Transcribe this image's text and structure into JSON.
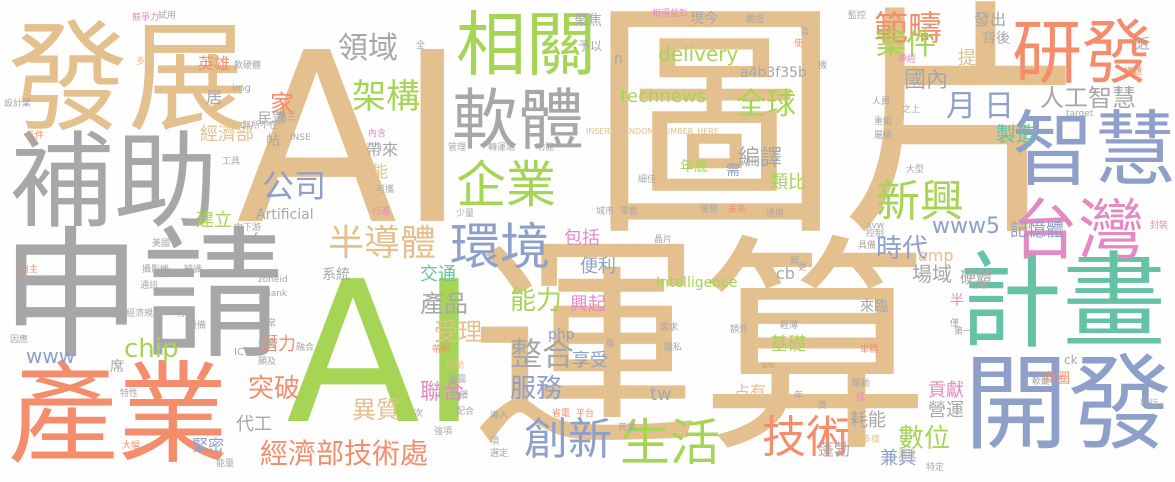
{
  "palette": {
    "tan": "#e3c08d",
    "gray": "#a7a7a7",
    "orange": "#f38d6c",
    "green": "#a6d555",
    "blue": "#8ea0c9",
    "teal": "#66c2a5",
    "pink": "#e48ac2"
  },
  "words": [
    {
      "text": "圖片",
      "color": "tan"
    },
    {
      "text": "AI",
      "color": "tan"
    },
    {
      "text": "AI",
      "color": "green"
    },
    {
      "text": "運算",
      "color": "tan"
    },
    {
      "text": "發展",
      "color": "tan"
    },
    {
      "text": "補助",
      "color": "gray"
    },
    {
      "text": "申請",
      "color": "gray"
    },
    {
      "text": "產業",
      "color": "orange"
    },
    {
      "text": "開發",
      "color": "blue"
    },
    {
      "text": "計畫",
      "color": "teal"
    },
    {
      "text": "智慧",
      "color": "blue"
    },
    {
      "text": "台灣",
      "color": "pink"
    },
    {
      "text": "研發",
      "color": "orange"
    },
    {
      "text": "相關",
      "color": "green"
    },
    {
      "text": "軟體",
      "color": "gray"
    },
    {
      "text": "企業",
      "color": "green"
    },
    {
      "text": "環境",
      "color": "blue"
    },
    {
      "text": "創新",
      "color": "blue"
    },
    {
      "text": "生活",
      "color": "green"
    },
    {
      "text": "技術",
      "color": "orange"
    },
    {
      "text": "新興",
      "color": "green"
    },
    {
      "text": "半導體",
      "color": "tan"
    },
    {
      "text": "經濟部技術處",
      "color": "orange"
    },
    {
      "text": "架構",
      "color": "green"
    },
    {
      "text": "領域",
      "color": "gray"
    },
    {
      "text": "範疇",
      "color": "orange"
    },
    {
      "text": "案件",
      "color": "green"
    },
    {
      "text": "人工智慧",
      "color": "gray"
    },
    {
      "text": "全球",
      "color": "green"
    },
    {
      "text": "月",
      "color": "blue"
    },
    {
      "text": "日",
      "color": "blue"
    },
    {
      "text": "國內",
      "color": "gray"
    },
    {
      "text": "公司",
      "color": "blue"
    },
    {
      "text": "整合",
      "color": "gray"
    },
    {
      "text": "服務",
      "color": "blue"
    },
    {
      "text": "能力",
      "color": "green"
    },
    {
      "text": "時代",
      "color": "blue"
    },
    {
      "text": "產品",
      "color": "gray"
    },
    {
      "text": "受理",
      "color": "tan"
    },
    {
      "text": "突破",
      "color": "orange"
    },
    {
      "text": "異質",
      "color": "tan"
    },
    {
      "text": "數位",
      "color": "green"
    },
    {
      "text": "www5",
      "color": "blue"
    },
    {
      "text": "家",
      "color": "orange"
    },
    {
      "text": "chip",
      "color": "green"
    },
    {
      "text": "www",
      "color": "blue"
    },
    {
      "text": "delivery",
      "color": "green"
    },
    {
      "text": "technews",
      "color": "green"
    },
    {
      "text": "記憶體",
      "color": "blue"
    },
    {
      "text": "製造",
      "color": "teal"
    },
    {
      "text": "編譯",
      "color": "gray"
    },
    {
      "text": "類比",
      "color": "green"
    },
    {
      "text": "場域",
      "color": "gray"
    },
    {
      "text": "硬體",
      "color": "gray"
    },
    {
      "text": "包括",
      "color": "pink"
    },
    {
      "text": "交通",
      "color": "teal"
    },
    {
      "text": "便利",
      "color": "blue"
    },
    {
      "text": "興起",
      "color": "pink"
    },
    {
      "text": "享受",
      "color": "blue"
    },
    {
      "text": "聯合",
      "color": "pink"
    },
    {
      "text": "基礎",
      "color": "green"
    },
    {
      "text": "耗能",
      "color": "gray"
    },
    {
      "text": "營運",
      "color": "gray"
    },
    {
      "text": "兼具",
      "color": "blue"
    },
    {
      "text": "蓬勃",
      "color": "gray"
    },
    {
      "text": "貢獻",
      "color": "pink"
    },
    {
      "text": "代工",
      "color": "gray"
    },
    {
      "text": "緊密",
      "color": "blue"
    },
    {
      "text": "潛力",
      "color": "orange"
    },
    {
      "text": "提出",
      "color": "tan"
    },
    {
      "text": "發出",
      "color": "gray"
    },
    {
      "text": "背後",
      "color": "gray"
    },
    {
      "text": "經濟部",
      "color": "tan"
    },
    {
      "text": "效能",
      "color": "tan"
    },
    {
      "text": "帶來",
      "color": "gray"
    },
    {
      "text": "建立",
      "color": "green"
    },
    {
      "text": "居",
      "color": "gray"
    },
    {
      "text": "英雄",
      "color": "orange"
    },
    {
      "text": "a4b3f35b",
      "color": "gray"
    },
    {
      "text": "Intelligence",
      "color": "green"
    },
    {
      "text": "Artificial",
      "color": "gray"
    },
    {
      "text": "php",
      "color": "blue"
    },
    {
      "text": "tw",
      "color": "gray"
    },
    {
      "text": "cb",
      "color": "gray"
    },
    {
      "text": "amp",
      "color": "tan"
    },
    {
      "text": "系統",
      "color": "gray"
    },
    {
      "text": "席",
      "color": "gray"
    },
    {
      "text": "占有",
      "color": "tan"
    },
    {
      "text": "年底",
      "color": "green"
    },
    {
      "text": "需",
      "color": "blue"
    },
    {
      "text": "來臨",
      "color": "gray"
    },
    {
      "text": "民眾",
      "color": "gray"
    },
    {
      "text": "帖",
      "color": "gray"
    },
    {
      "text": "ck",
      "color": "gray"
    },
    {
      "text": "聚焦",
      "color": "gray"
    },
    {
      "text": "現今",
      "color": "gray"
    },
    {
      "text": "近",
      "color": "gray"
    },
    {
      "text": "予以",
      "color": "gray"
    },
    {
      "text": "n",
      "color": "gray"
    },
    {
      "text": "href",
      "color": "gray"
    },
    {
      "text": "INSERT_RANDOM_NUMBER_HERE",
      "color": "tan"
    },
    {
      "text": "競爭力",
      "color": "pink"
    },
    {
      "text": "多元",
      "color": "tan"
    },
    {
      "text": "設計業",
      "color": "gray"
    },
    {
      "text": "元件",
      "color": "orange"
    },
    {
      "text": "img",
      "color": "gray"
    },
    {
      "text": "軟硬體",
      "color": "gray"
    },
    {
      "text": "第三",
      "color": "gray"
    },
    {
      "text": "無所不在",
      "color": "gray"
    },
    {
      "text": "INSE",
      "color": "gray"
    },
    {
      "text": "內含",
      "color": "pink"
    },
    {
      "text": "工具",
      "color": "gray"
    },
    {
      "text": "管理",
      "color": "gray"
    },
    {
      "text": "轉運站",
      "color": "gray"
    },
    {
      "text": "功能",
      "color": "gray"
    },
    {
      "text": "可攜",
      "color": "gray"
    },
    {
      "text": "行進",
      "color": "pink"
    },
    {
      "text": "中下游",
      "color": "gray"
    },
    {
      "text": "少量",
      "color": "gray"
    },
    {
      "text": "城市",
      "color": "gray"
    },
    {
      "text": "零售",
      "color": "gray"
    },
    {
      "text": "優勢",
      "color": "gray"
    },
    {
      "text": "未來",
      "color": "orange"
    },
    {
      "text": "通用",
      "color": "gray"
    },
    {
      "text": "美國",
      "color": "gray"
    },
    {
      "text": "自主",
      "color": "orange"
    },
    {
      "text": "攝影機",
      "color": "gray"
    },
    {
      "text": "辨識",
      "color": "gray"
    },
    {
      "text": "通訊",
      "color": "gray"
    },
    {
      "text": "_blank",
      "color": "gray"
    },
    {
      "text": "zoneid",
      "color": "gray"
    },
    {
      "text": "經濟規",
      "color": "gray"
    },
    {
      "text": "材料",
      "color": "gray"
    },
    {
      "text": "設備",
      "color": "gray"
    },
    {
      "text": "日常",
      "color": "gray"
    },
    {
      "text": "因應",
      "color": "gray"
    },
    {
      "text": "特性",
      "color": "gray"
    },
    {
      "text": "大幅",
      "color": "orange"
    },
    {
      "text": "能量",
      "color": "gray"
    },
    {
      "text": "檢測",
      "color": "gray"
    },
    {
      "text": "融合",
      "color": "gray"
    },
    {
      "text": "顯及",
      "color": "gray"
    },
    {
      "text": "帶動",
      "color": "orange"
    },
    {
      "text": "啟動",
      "color": "tan"
    },
    {
      "text": "晶圓",
      "color": "gray"
    },
    {
      "text": "回饋",
      "color": "gray"
    },
    {
      "text": "配合",
      "color": "gray"
    },
    {
      "text": "導入",
      "color": "gray"
    },
    {
      "text": "省電",
      "color": "orange"
    },
    {
      "text": "平台",
      "color": "orange"
    },
    {
      "text": "強項",
      "color": "gray"
    },
    {
      "text": "選定",
      "color": "gray"
    },
    {
      "text": "項",
      "color": "gray"
    },
    {
      "text": "a",
      "color": "gray"
    },
    {
      "text": "IC",
      "color": "gray"
    },
    {
      "text": "次",
      "color": "gray"
    },
    {
      "text": "商業",
      "color": "gray"
    },
    {
      "text": "需求",
      "color": "gray"
    },
    {
      "text": "隱私",
      "color": "gray"
    },
    {
      "text": "車輛",
      "color": "orange"
    },
    {
      "text": "特定",
      "color": "gray"
    },
    {
      "text": "多樣",
      "color": "tan"
    },
    {
      "text": "測試",
      "color": "gray"
    },
    {
      "text": "驅動",
      "color": "gray"
    },
    {
      "text": "低",
      "color": "pink"
    },
    {
      "text": "商圈",
      "color": "orange"
    },
    {
      "text": "軟硬",
      "color": "gray"
    },
    {
      "text": "執行",
      "color": "gray"
    },
    {
      "text": "第一",
      "color": "gray"
    },
    {
      "text": "輕薄",
      "color": "gray"
    },
    {
      "text": "額外",
      "color": "gray"
    },
    {
      "text": "半",
      "color": "pink"
    },
    {
      "text": "可靠",
      "color": "gray"
    },
    {
      "text": "僅",
      "color": "gray"
    },
    {
      "text": "封裝",
      "color": "pink"
    },
    {
      "text": "avw",
      "color": "gray"
    },
    {
      "text": "src",
      "color": "gray"
    },
    {
      "text": "更",
      "color": "gray"
    },
    {
      "text": "類",
      "color": "gray"
    },
    {
      "text": "具備",
      "color": "gray"
    },
    {
      "text": "晶片",
      "color": "gray"
    },
    {
      "text": "細佳",
      "color": "gray"
    },
    {
      "text": "控制",
      "color": "gray"
    },
    {
      "text": "大型",
      "color": "gray"
    },
    {
      "text": "重組",
      "color": "gray"
    },
    {
      "text": "之上",
      "color": "gray"
    },
    {
      "text": "target",
      "color": "gray"
    },
    {
      "text": "屬級",
      "color": "gray"
    },
    {
      "text": "人員",
      "color": "gray"
    },
    {
      "text": "神經",
      "color": "pink"
    },
    {
      "text": "議題",
      "color": "orange"
    },
    {
      "text": "監控",
      "color": "gray"
    },
    {
      "text": "驗證",
      "color": "gray"
    },
    {
      "text": "使",
      "color": "orange"
    },
    {
      "text": "相得益彰",
      "color": "pink"
    },
    {
      "text": "試用",
      "color": "gray"
    },
    {
      "text": "旨",
      "color": "gray"
    },
    {
      "text": "機",
      "color": "gray"
    },
    {
      "text": "全",
      "color": "gray"
    },
    {
      "text": "年",
      "color": "gray"
    },
    {
      "text": "資",
      "color": "gray"
    },
    {
      "text": "版",
      "color": "gray"
    }
  ]
}
